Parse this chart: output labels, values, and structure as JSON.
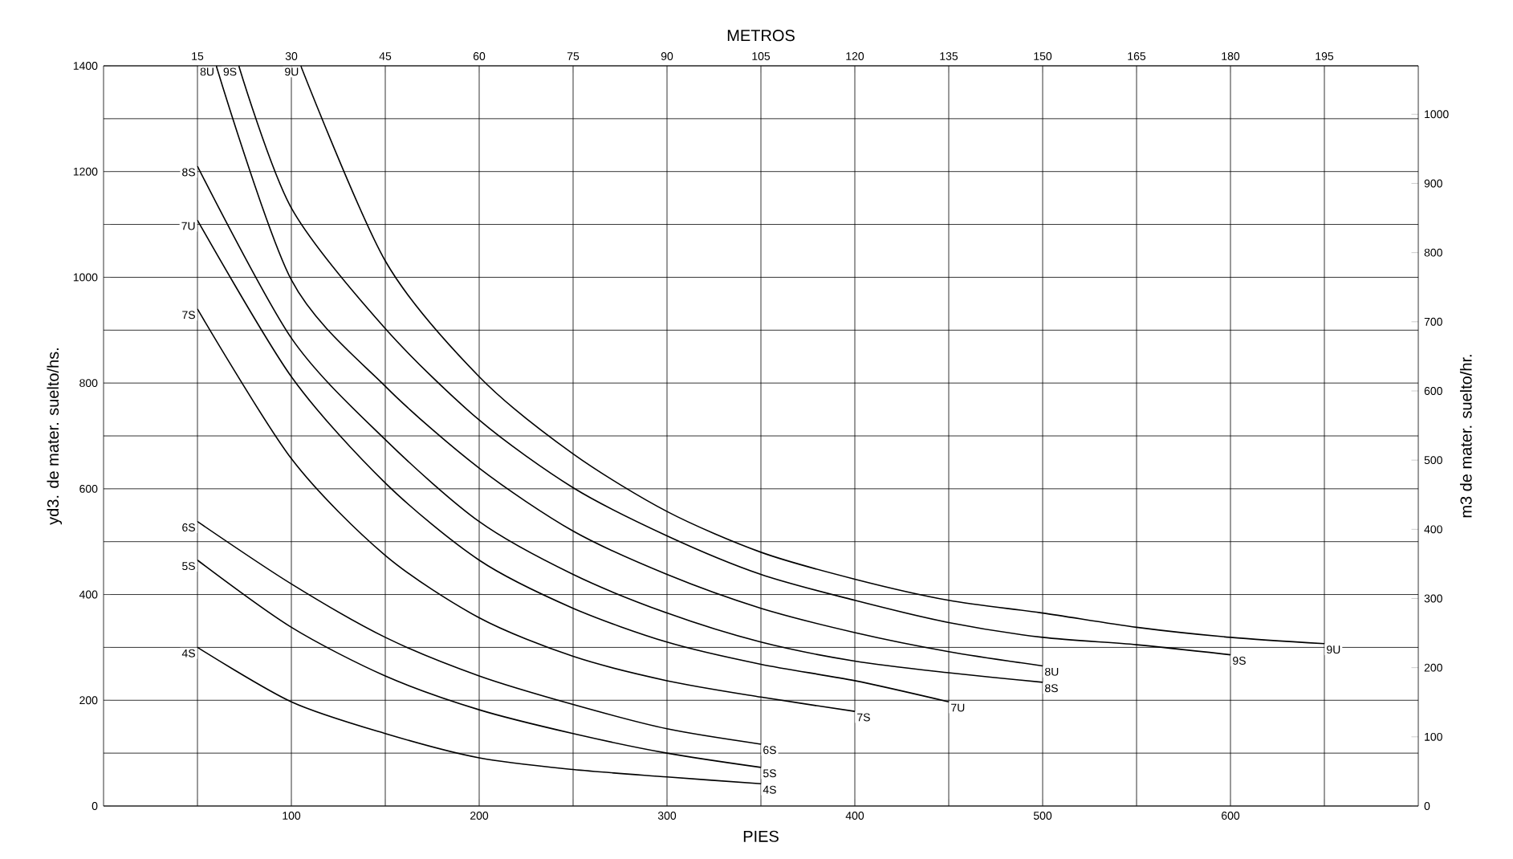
{
  "chart_data": {
    "type": "line",
    "xlabel": "PIES",
    "x2label": "METROS",
    "ylabel": "yd3. de mater. suelto/hs.",
    "y2label": "m3 de mater. suelto/hr.",
    "xlim": [
      0,
      700
    ],
    "xticks": [
      {
        "value": 50,
        "label": null
      },
      100,
      {
        "value": 150,
        "label": null
      },
      200,
      {
        "value": 250,
        "label": null
      },
      300,
      {
        "value": 350,
        "label": null
      },
      400,
      {
        "value": 450,
        "label": null
      },
      500,
      {
        "value": 550,
        "label": null
      },
      600,
      {
        "value": 650,
        "label": null
      }
    ],
    "x2lim": [
      0,
      210
    ],
    "x2ticks": [
      15,
      30,
      45,
      60,
      75,
      90,
      105,
      120,
      135,
      150,
      165,
      180,
      195
    ],
    "ylim": [
      0,
      1400
    ],
    "yticks": [
      0,
      {
        "value": 100,
        "label": null
      },
      200,
      {
        "value": 300,
        "label": null
      },
      400,
      {
        "value": 500,
        "label": null
      },
      600,
      {
        "value": 700,
        "label": null
      },
      800,
      {
        "value": 900,
        "label": null
      },
      1000,
      {
        "value": 1100,
        "label": null
      },
      1200,
      {
        "value": 1300,
        "label": null
      },
      1400
    ],
    "y2lim": [
      0,
      1070
    ],
    "y2ticks": [
      0,
      100,
      200,
      300,
      400,
      500,
      600,
      700,
      800,
      900,
      1000
    ],
    "grid": true,
    "marker": "none",
    "line_style": "solid",
    "series": [
      {
        "name": "4S",
        "color": "#000000",
        "x": [
          50,
          100,
          150,
          200,
          250,
          300,
          350
        ],
        "values": [
          300,
          197,
          137,
          91,
          69,
          55,
          42
        ]
      },
      {
        "name": "5S",
        "color": "#000000",
        "x": [
          50,
          100,
          150,
          200,
          250,
          300,
          350
        ],
        "values": [
          465,
          338,
          246,
          182,
          137,
          100,
          73
        ]
      },
      {
        "name": "6S",
        "color": "#000000",
        "x": [
          50,
          100,
          150,
          200,
          250,
          300,
          350
        ],
        "values": [
          538,
          420,
          319,
          246,
          192,
          146,
          117
        ]
      },
      {
        "name": "7S",
        "color": "#000000",
        "x": [
          50,
          100,
          150,
          200,
          250,
          300,
          350,
          400
        ],
        "values": [
          940,
          657,
          474,
          356,
          283,
          237,
          206,
          179
        ]
      },
      {
        "name": "7U",
        "color": "#000000",
        "x": [
          50,
          100,
          150,
          200,
          250,
          300,
          350,
          400,
          450
        ],
        "values": [
          1108,
          812,
          611,
          465,
          374,
          310,
          268,
          237,
          197
        ]
      },
      {
        "name": "8S",
        "color": "#000000",
        "x": [
          50,
          100,
          150,
          200,
          250,
          300,
          350,
          400,
          450,
          500
        ],
        "values": [
          1210,
          885,
          693,
          538,
          438,
          365,
          310,
          274,
          252,
          234
        ]
      },
      {
        "name": "8U",
        "color": "#000000",
        "x": [
          60,
          100,
          150,
          200,
          250,
          300,
          350,
          400,
          450,
          500
        ],
        "values": [
          1400,
          995,
          794,
          639,
          520,
          438,
          374,
          328,
          292,
          265
        ]
      },
      {
        "name": "9S",
        "color": "#000000",
        "x": [
          72,
          100,
          150,
          200,
          250,
          300,
          350,
          400,
          450,
          500,
          550,
          600
        ],
        "values": [
          1400,
          1131,
          903,
          730,
          602,
          511,
          438,
          389,
          347,
          319,
          305,
          286
        ]
      },
      {
        "name": "9U",
        "color": "#000000",
        "x": [
          105,
          150,
          200,
          250,
          300,
          350,
          400,
          450,
          500,
          550,
          600,
          650
        ],
        "values": [
          1400,
          1031,
          812,
          666,
          557,
          480,
          429,
          389,
          365,
          338,
          319,
          307
        ]
      }
    ]
  }
}
